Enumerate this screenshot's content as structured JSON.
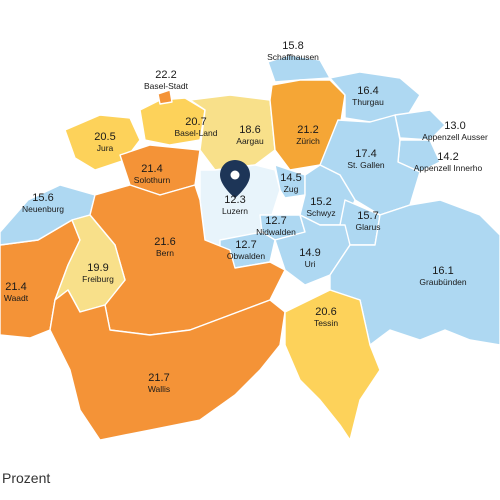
{
  "colors": {
    "very_low": "#e8f4fb",
    "low": "#aed8f2",
    "mid_low": "#f8e08a",
    "mid": "#fdd25a",
    "high": "#f5a636",
    "very_high": "#f49337",
    "marker": "#1d3557"
  },
  "cantons": [
    {
      "id": "schaffhausen",
      "name": "Schaffhausen",
      "value": "15.8",
      "color": "low"
    },
    {
      "id": "basel-stadt",
      "name": "Basel-Stadt",
      "value": "22.2",
      "color": "very_high"
    },
    {
      "id": "thurgau",
      "name": "Thurgau",
      "value": "16.4",
      "color": "low"
    },
    {
      "id": "basel-land",
      "name": "Basel-Land",
      "value": "20.7",
      "color": "mid"
    },
    {
      "id": "jura",
      "name": "Jura",
      "value": "20.5",
      "color": "mid"
    },
    {
      "id": "aargau",
      "name": "Aargau",
      "value": "18.6",
      "color": "mid_low"
    },
    {
      "id": "zuerich",
      "name": "Zürich",
      "value": "21.2",
      "color": "high"
    },
    {
      "id": "appenzell-ausser",
      "name": "Appenzell Ausser",
      "value": "13.0",
      "color": "low"
    },
    {
      "id": "appenzell-inner",
      "name": "Appenzell Innerho",
      "value": "14.2",
      "color": "low"
    },
    {
      "id": "st-gallen",
      "name": "St. Gallen",
      "value": "17.4",
      "color": "low"
    },
    {
      "id": "solothurn",
      "name": "Solothurn",
      "value": "21.4",
      "color": "very_high"
    },
    {
      "id": "neuenburg",
      "name": "Neuenburg",
      "value": "15.6",
      "color": "low"
    },
    {
      "id": "zug",
      "name": "Zug",
      "value": "14.5",
      "color": "low"
    },
    {
      "id": "luzern",
      "name": "Luzern",
      "value": "12.3",
      "color": "very_low"
    },
    {
      "id": "schwyz",
      "name": "Schwyz",
      "value": "15.2",
      "color": "low"
    },
    {
      "id": "glarus",
      "name": "Glarus",
      "value": "15.7",
      "color": "low"
    },
    {
      "id": "nidwalden",
      "name": "Nidwalden",
      "value": "12.7",
      "color": "low"
    },
    {
      "id": "obwalden",
      "name": "Obwalden",
      "value": "12.7",
      "color": "low"
    },
    {
      "id": "uri",
      "name": "Uri",
      "value": "14.9",
      "color": "low"
    },
    {
      "id": "bern",
      "name": "Bern",
      "value": "21.6",
      "color": "very_high"
    },
    {
      "id": "freiburg",
      "name": "Freiburg",
      "value": "19.9",
      "color": "mid_low"
    },
    {
      "id": "waadt",
      "name": "Waadt",
      "value": "21.4",
      "color": "very_high"
    },
    {
      "id": "graubuenden",
      "name": "Graubünden",
      "value": "16.1",
      "color": "low"
    },
    {
      "id": "tessin",
      "name": "Tessin",
      "value": "20.6",
      "color": "mid"
    },
    {
      "id": "wallis",
      "name": "Wallis",
      "value": "21.7",
      "color": "very_high"
    }
  ],
  "footer": {
    "unit_label": "Prozent"
  }
}
